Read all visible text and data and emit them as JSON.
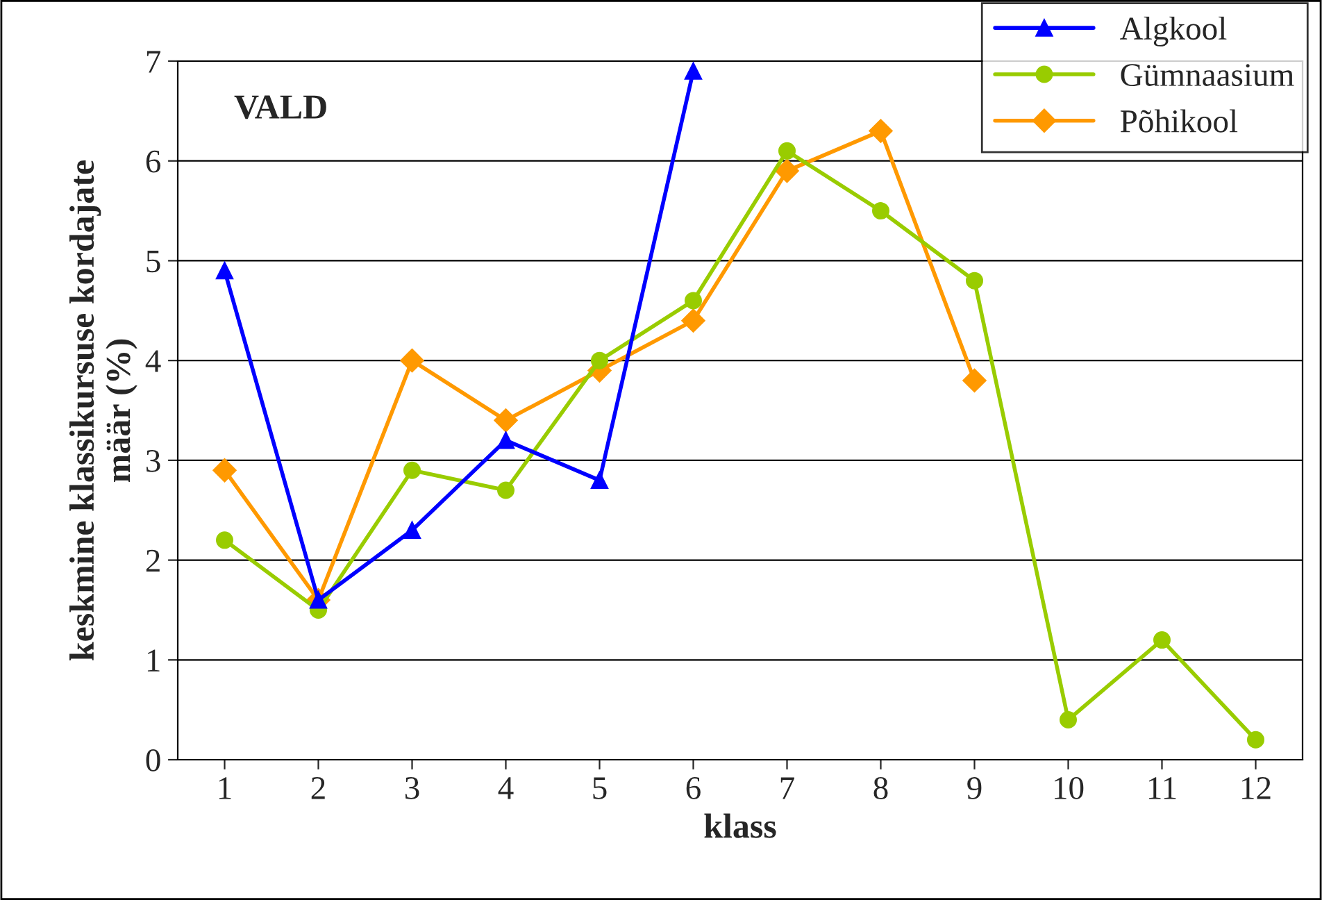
{
  "chart_data": {
    "type": "line",
    "xlabel": "klass",
    "ylabel": "keskmine klassikursuse kordajate\nmäär (%)",
    "annotations": [
      "VALD"
    ],
    "categories": [
      "1",
      "2",
      "3",
      "4",
      "5",
      "6",
      "7",
      "8",
      "9",
      "10",
      "11",
      "12"
    ],
    "series": [
      {
        "name": "Algkool",
        "color": "#0000ff",
        "marker": "triangle",
        "values": [
          4.9,
          1.6,
          2.3,
          3.2,
          2.8,
          6.9,
          null,
          null,
          null,
          null,
          null,
          null
        ]
      },
      {
        "name": "Gümnaasium",
        "color": "#99cc00",
        "marker": "circle",
        "values": [
          2.2,
          1.5,
          2.9,
          2.7,
          4.0,
          4.6,
          6.1,
          5.5,
          4.8,
          0.4,
          1.2,
          0.2
        ]
      },
      {
        "name": "Põhikool",
        "color": "#ff9900",
        "marker": "diamond",
        "values": [
          2.9,
          1.6,
          4.0,
          3.4,
          3.9,
          4.4,
          5.9,
          6.3,
          3.8,
          null,
          null,
          null
        ]
      }
    ],
    "ylim": [
      0,
      7
    ],
    "yticks": [
      0,
      1,
      2,
      3,
      4,
      5,
      6,
      7
    ],
    "grid": "y",
    "legend": "top right"
  }
}
